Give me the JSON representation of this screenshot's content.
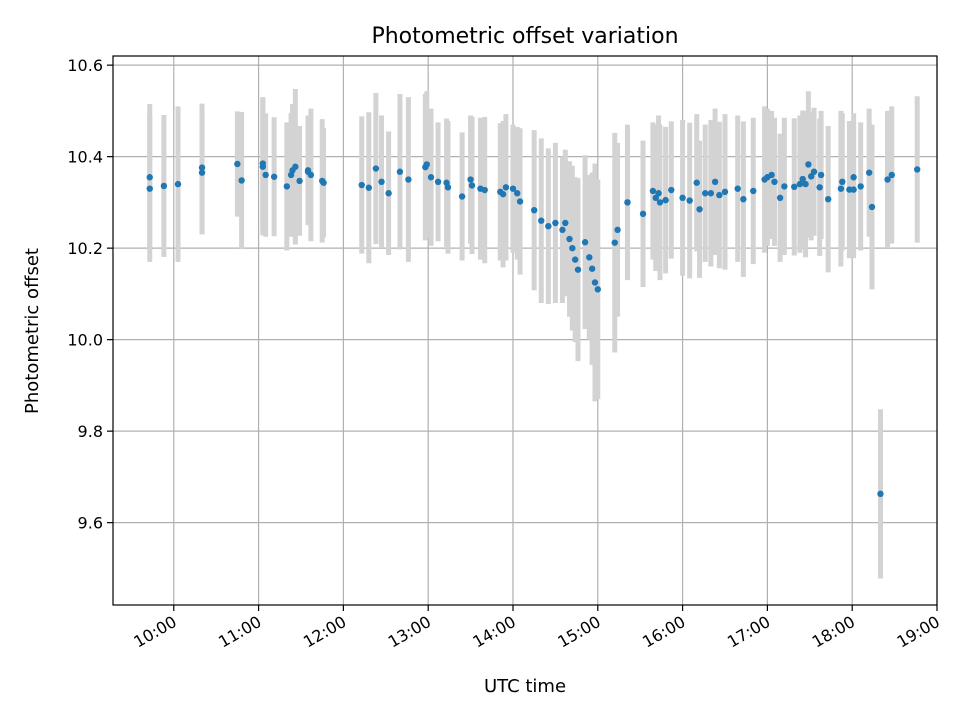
{
  "chart_data": {
    "type": "scatter",
    "title": "Photometric offset variation",
    "xlabel": "UTC time",
    "ylabel": "Photometric offset",
    "xlim": [
      "09:17",
      "19:00"
    ],
    "ylim": [
      9.42,
      10.62
    ],
    "x_ticks": [
      "10:00",
      "11:00",
      "12:00",
      "13:00",
      "14:00",
      "15:00",
      "16:00",
      "17:00",
      "18:00",
      "19:00"
    ],
    "y_ticks": [
      "9.6",
      "9.8",
      "10.0",
      "10.2",
      "10.4",
      "10.6"
    ],
    "grid": true,
    "colors": {
      "points": "#1f77b4",
      "error_bars": "#d3d3d3"
    },
    "series": [
      {
        "x": [
          "09:43",
          "09:43",
          "09:53",
          "10:03",
          "10:20",
          "10:20",
          "10:45",
          "10:48",
          "11:03",
          "11:03",
          "11:05",
          "11:11",
          "11:20",
          "11:23",
          "11:24",
          "11:26",
          "11:29",
          "11:35",
          "11:35",
          "11:37",
          "11:45",
          "11:46",
          "12:13",
          "12:18",
          "12:23",
          "12:27",
          "12:32",
          "12:40",
          "12:46",
          "12:58",
          "12:59",
          "13:02",
          "13:07",
          "13:13",
          "13:14",
          "13:24",
          "13:30",
          "13:31",
          "13:37",
          "13:40",
          "13:51",
          "13:53",
          "13:55",
          "14:00",
          "14:03",
          "14:05",
          "14:15",
          "14:20",
          "14:25",
          "14:30",
          "14:35",
          "14:37",
          "14:40",
          "14:42",
          "14:44",
          "14:46",
          "14:51",
          "14:54",
          "14:56",
          "14:58",
          "15:00",
          "15:12",
          "15:14",
          "15:21",
          "15:21",
          "15:32",
          "15:39",
          "15:41",
          "15:43",
          "15:44",
          "15:48",
          "15:52",
          "16:00",
          "16:05",
          "16:10",
          "16:12",
          "16:16",
          "16:20",
          "16:23",
          "16:26",
          "16:30",
          "16:39",
          "16:43",
          "16:50",
          "16:58",
          "17:00",
          "17:03",
          "17:05",
          "17:09",
          "17:12",
          "17:19",
          "17:23",
          "17:25",
          "17:27",
          "17:29",
          "17:31",
          "17:33",
          "17:38",
          "17:37",
          "17:43",
          "17:52",
          "17:53",
          "17:58",
          "18:01",
          "18:01",
          "18:06",
          "18:12",
          "18:14",
          "18:20",
          "18:25",
          "18:28",
          "18:46"
        ],
        "y": [
          10.355,
          10.33,
          10.336,
          10.34,
          10.376,
          10.365,
          10.384,
          10.348,
          10.385,
          10.378,
          10.36,
          10.356,
          10.335,
          10.36,
          10.37,
          10.378,
          10.347,
          10.37,
          10.367,
          10.36,
          10.347,
          10.343,
          10.338,
          10.332,
          10.374,
          10.345,
          10.32,
          10.367,
          10.35,
          10.377,
          10.383,
          10.355,
          10.345,
          10.343,
          10.333,
          10.313,
          10.35,
          10.337,
          10.33,
          10.327,
          10.323,
          10.318,
          10.333,
          10.33,
          10.32,
          10.302,
          10.283,
          10.26,
          10.248,
          10.255,
          10.24,
          10.255,
          10.22,
          10.2,
          10.175,
          10.153,
          10.213,
          10.18,
          10.155,
          10.125,
          10.11,
          10.212,
          10.24,
          10.3,
          10.3,
          10.275,
          10.325,
          10.31,
          10.32,
          10.3,
          10.305,
          10.327,
          10.31,
          10.304,
          10.343,
          10.285,
          10.32,
          10.32,
          10.345,
          10.316,
          10.323,
          10.33,
          10.307,
          10.325,
          10.35,
          10.355,
          10.36,
          10.345,
          10.31,
          10.335,
          10.334,
          10.34,
          10.351,
          10.34,
          10.383,
          10.357,
          10.367,
          10.36,
          10.333,
          10.307,
          10.33,
          10.345,
          10.328,
          10.355,
          10.328,
          10.335,
          10.365,
          10.29,
          9.663,
          10.35,
          10.36,
          10.372
        ],
        "yerr": [
          0.16,
          0.16,
          0.155,
          0.17,
          0.14,
          0.135,
          0.115,
          0.15,
          0.145,
          0.15,
          0.135,
          0.13,
          0.14,
          0.135,
          0.145,
          0.17,
          0.12,
          0.12,
          0.115,
          0.145,
          0.135,
          0.12,
          0.15,
          0.165,
          0.165,
          0.145,
          0.135,
          0.17,
          0.18,
          0.16,
          0.16,
          0.15,
          0.13,
          0.14,
          0.145,
          0.14,
          0.14,
          0.15,
          0.155,
          0.16,
          0.15,
          0.16,
          0.16,
          0.14,
          0.145,
          0.16,
          0.175,
          0.18,
          0.17,
          0.175,
          0.16,
          0.16,
          0.17,
          0.18,
          0.18,
          0.2,
          0.19,
          0.18,
          0.21,
          0.26,
          0.24,
          0.24,
          0.19,
          0.17,
          0.16,
          0.16,
          0.15,
          0.16,
          0.17,
          0.17,
          0.16,
          0.15,
          0.17,
          0.17,
          0.15,
          0.15,
          0.15,
          0.16,
          0.16,
          0.16,
          0.17,
          0.16,
          0.17,
          0.16,
          0.16,
          0.15,
          0.14,
          0.14,
          0.14,
          0.15,
          0.15,
          0.15,
          0.15,
          0.16,
          0.16,
          0.14,
          0.14,
          0.14,
          0.15,
          0.16,
          0.17,
          0.15,
          0.15,
          0.14,
          0.15,
          0.14,
          0.14,
          0.18,
          0.185,
          0.15,
          0.15,
          0.16
        ]
      }
    ]
  }
}
